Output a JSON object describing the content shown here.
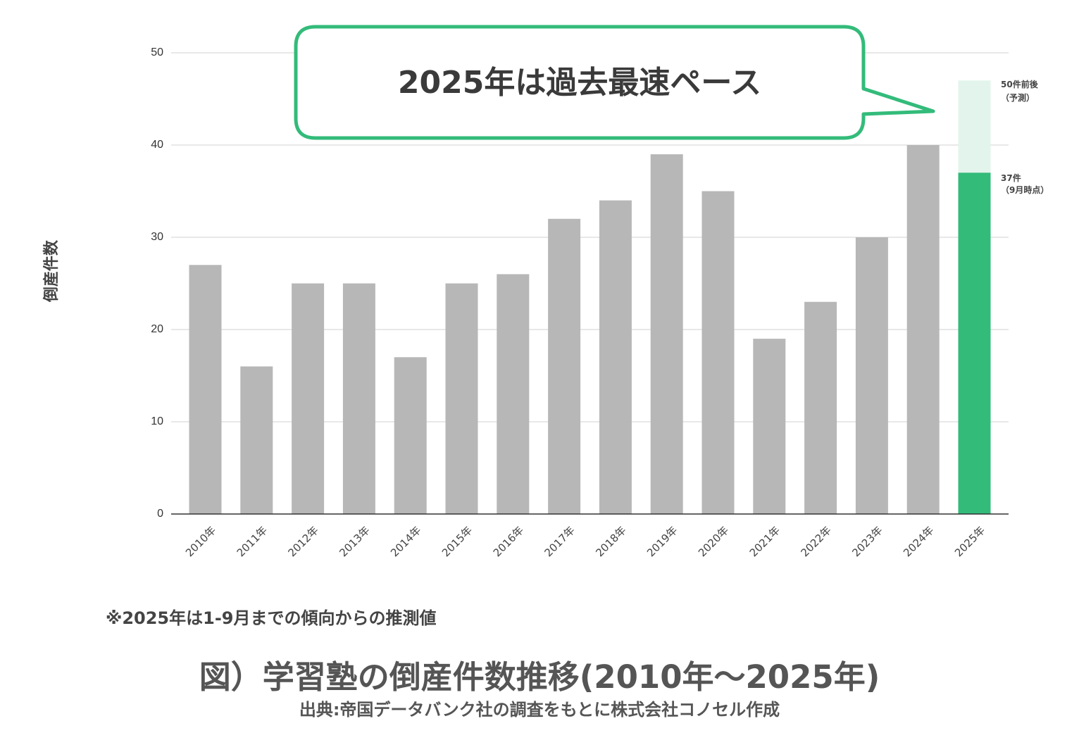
{
  "chart_data": {
    "type": "bar",
    "categories": [
      "2010年",
      "2011年",
      "2012年",
      "2013年",
      "2014年",
      "2015年",
      "2016年",
      "2017年",
      "2018年",
      "2019年",
      "2020年",
      "2021年",
      "2022年",
      "2023年",
      "2024年",
      "2025年"
    ],
    "values": [
      27,
      16,
      25,
      25,
      17,
      25,
      26,
      32,
      34,
      39,
      35,
      19,
      23,
      30,
      40,
      37
    ],
    "projection": {
      "category": "2025年",
      "value": 47
    },
    "ylabel": "倒産件数",
    "xlabel": "",
    "ylim": [
      0,
      50
    ],
    "yticks": [
      0,
      10,
      20,
      30,
      40,
      50
    ],
    "grid": true,
    "legend": "none",
    "colors": {
      "bar": "#b7b7b7",
      "highlight": "#33bb7a",
      "projection": "#e3f4ec",
      "callout_border": "#33bb7a",
      "grid": "#d9d9d9"
    },
    "annotations": {
      "forecast_line1": "50件前後",
      "forecast_line2": "（予測）",
      "actual_line1": "37件",
      "actual_line2": "（9月時点）"
    },
    "callout": "2025年は過去最速ペース"
  },
  "note": "※2025年は1-9月までの傾向からの推測値",
  "figure_title": "図）学習塾の倒産件数推移(2010年〜2025年)",
  "source": "出典:帝国データバンク社の調査をもとに株式会社コノセル作成"
}
